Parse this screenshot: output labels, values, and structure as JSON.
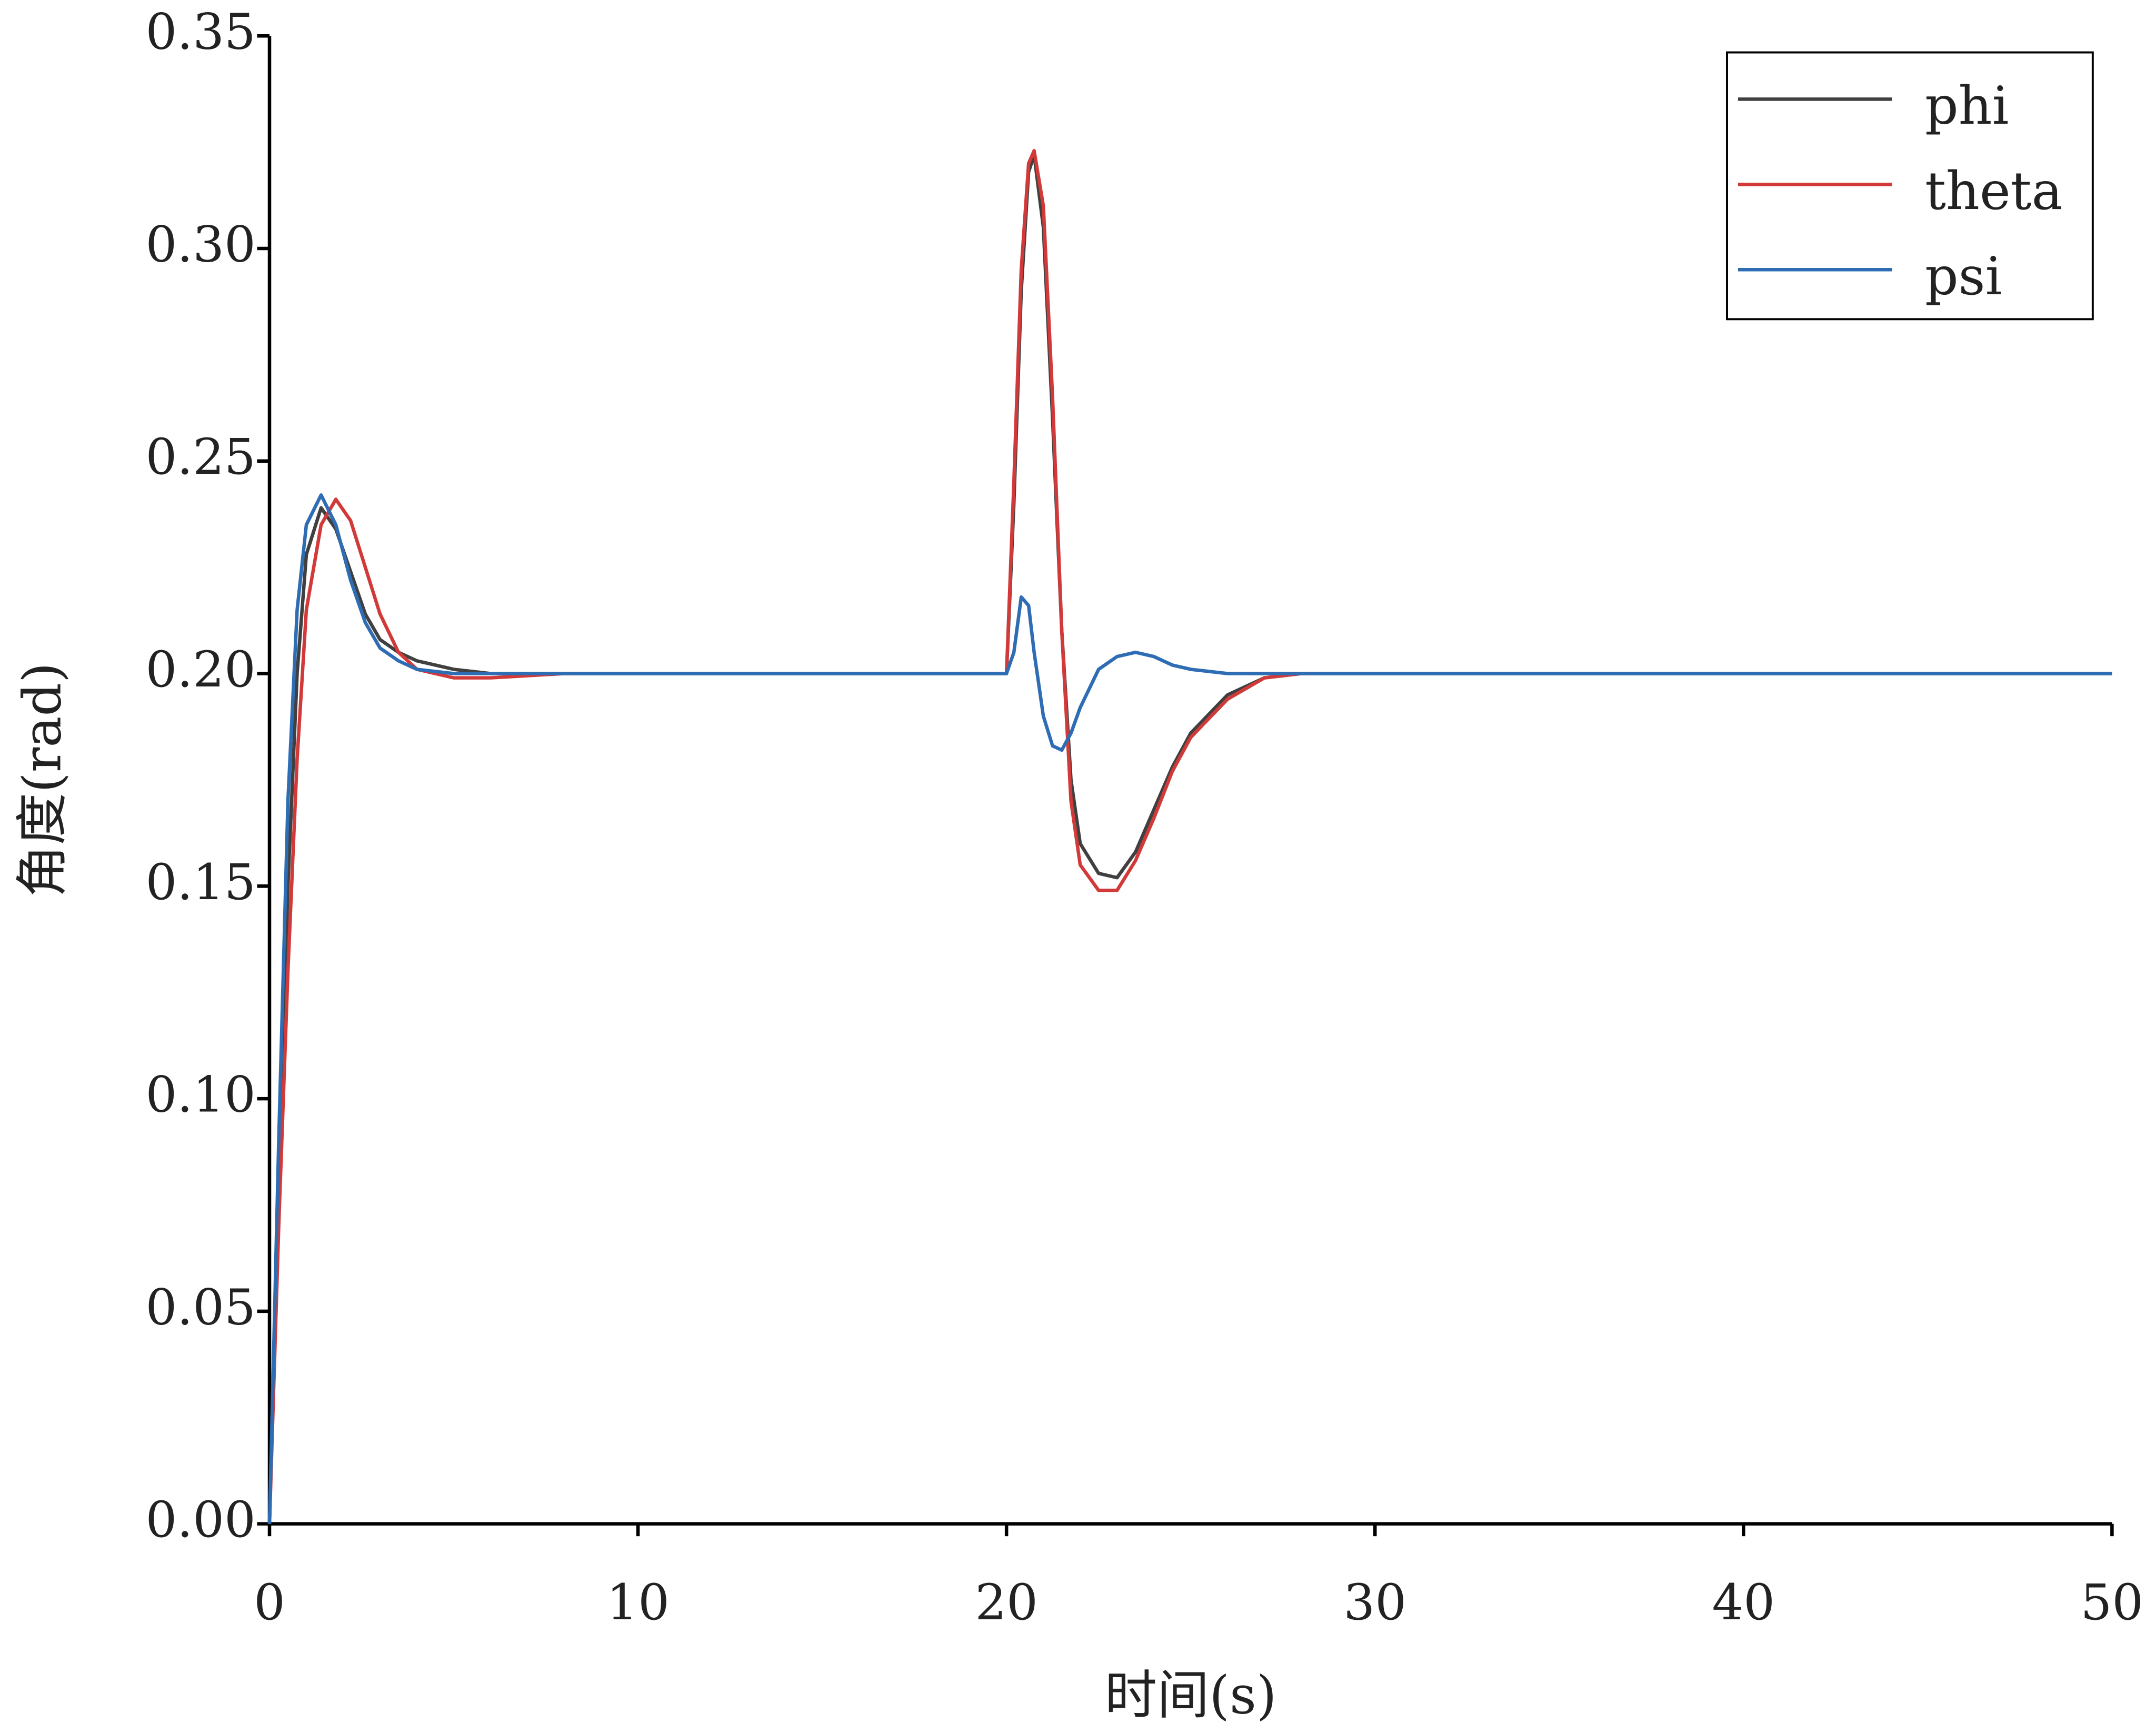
{
  "chart_data": {
    "type": "line",
    "xlabel": "时间(s)",
    "ylabel": "角度(rad)",
    "x": [
      0,
      0.25,
      0.5,
      0.75,
      1,
      1.4,
      1.8,
      2.2,
      2.6,
      3,
      3.5,
      4,
      5,
      6,
      8,
      10,
      20,
      20.2,
      20.4,
      20.6,
      20.75,
      21,
      21.25,
      21.5,
      21.75,
      22,
      22.5,
      23,
      23.5,
      24,
      24.5,
      25,
      26,
      27,
      28,
      30,
      50
    ],
    "series": [
      {
        "name": "phi",
        "color": "#404040",
        "values": [
          0,
          0.08,
          0.15,
          0.2,
          0.228,
          0.239,
          0.234,
          0.224,
          0.214,
          0.208,
          0.205,
          0.203,
          0.201,
          0.2,
          0.2,
          0.2,
          0.2,
          0.24,
          0.29,
          0.318,
          0.322,
          0.305,
          0.26,
          0.21,
          0.175,
          0.16,
          0.153,
          0.152,
          0.158,
          0.168,
          0.178,
          0.186,
          0.195,
          0.199,
          0.2,
          0.2,
          0.2
        ]
      },
      {
        "name": "theta",
        "color": "#d23a3a",
        "values": [
          0,
          0.07,
          0.13,
          0.18,
          0.215,
          0.235,
          0.241,
          0.236,
          0.225,
          0.214,
          0.205,
          0.201,
          0.199,
          0.199,
          0.2,
          0.2,
          0.2,
          0.245,
          0.295,
          0.32,
          0.323,
          0.31,
          0.265,
          0.21,
          0.17,
          0.155,
          0.149,
          0.149,
          0.156,
          0.166,
          0.177,
          0.185,
          0.194,
          0.199,
          0.2,
          0.2,
          0.2
        ]
      },
      {
        "name": "psi",
        "color": "#2e6db4",
        "values": [
          0,
          0.09,
          0.17,
          0.215,
          0.235,
          0.242,
          0.235,
          0.222,
          0.212,
          0.206,
          0.203,
          0.201,
          0.2,
          0.2,
          0.2,
          0.2,
          0.2,
          0.205,
          0.218,
          0.216,
          0.205,
          0.19,
          0.183,
          0.182,
          0.186,
          0.192,
          0.201,
          0.204,
          0.205,
          0.204,
          0.202,
          0.201,
          0.2,
          0.2,
          0.2,
          0.2,
          0.2
        ]
      }
    ],
    "xlim": [
      0,
      50
    ],
    "xticks": [
      0,
      10,
      20,
      30,
      40,
      50
    ],
    "ylim": [
      0,
      0.35
    ],
    "yticks": [
      {
        "value": 0,
        "label": "0.00"
      },
      0.05,
      {
        "value": 0.1,
        "label": "0.10"
      },
      0.15,
      {
        "value": 0.2,
        "label": "0.20"
      },
      0.25,
      {
        "value": 0.3,
        "label": "0.30"
      },
      0.35
    ],
    "legend": "upper right",
    "grid": false
  }
}
